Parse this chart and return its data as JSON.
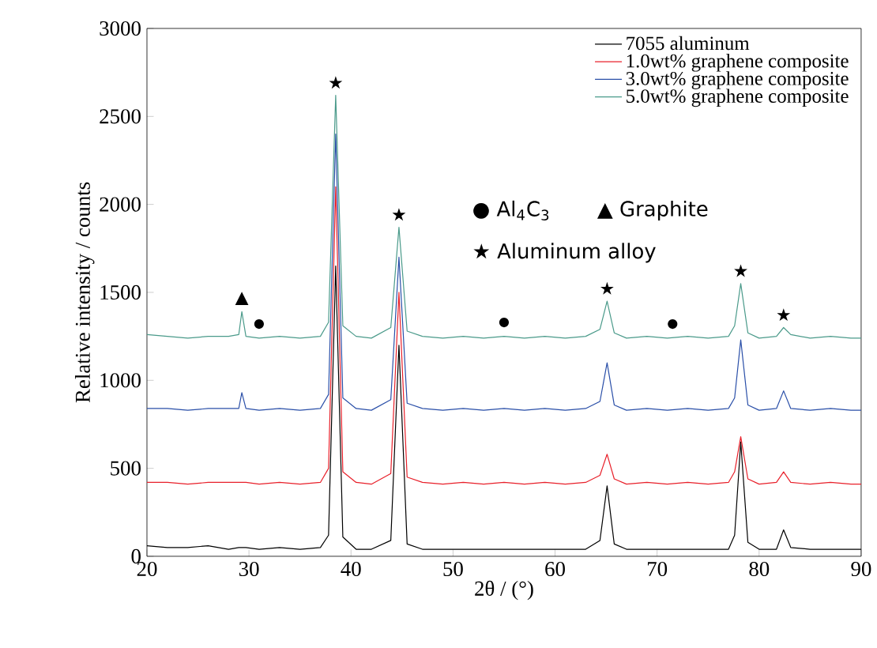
{
  "chart_data": {
    "type": "line",
    "xlabel": "2θ / (°)",
    "ylabel": "Relative intensity / counts",
    "x": [
      20,
      22,
      24,
      26,
      28,
      29,
      29.3,
      29.7,
      31,
      33,
      35,
      37,
      37.8,
      38.5,
      39.2,
      40.5,
      42,
      43.9,
      44.7,
      45.5,
      47,
      49,
      51,
      53,
      55,
      57,
      59,
      61,
      63,
      64.4,
      65.1,
      65.8,
      67,
      69,
      71,
      73,
      75,
      77,
      77.6,
      78.2,
      78.9,
      80,
      81.7,
      82.4,
      83.1,
      85,
      87,
      89,
      90
    ],
    "series": [
      {
        "name": "7055 aluminum",
        "color": "#000000",
        "values": [
          60,
          50,
          50,
          60,
          40,
          50,
          50,
          50,
          40,
          50,
          40,
          50,
          120,
          1650,
          110,
          40,
          40,
          90,
          1200,
          70,
          40,
          40,
          40,
          40,
          40,
          40,
          40,
          40,
          40,
          90,
          400,
          70,
          40,
          40,
          40,
          40,
          40,
          40,
          120,
          650,
          80,
          40,
          40,
          150,
          50,
          40,
          40,
          40,
          40
        ]
      },
      {
        "name": "1.0wt% graphene composite",
        "color": "#e8202a",
        "values": [
          420,
          420,
          410,
          420,
          420,
          420,
          420,
          420,
          410,
          420,
          410,
          420,
          500,
          2100,
          480,
          420,
          410,
          470,
          1500,
          450,
          420,
          410,
          420,
          410,
          420,
          410,
          420,
          410,
          420,
          460,
          580,
          440,
          410,
          420,
          410,
          420,
          410,
          420,
          480,
          680,
          440,
          410,
          420,
          480,
          420,
          410,
          420,
          410,
          410
        ]
      },
      {
        "name": "3.0wt% graphene composite",
        "color": "#2a4fa8",
        "values": [
          840,
          840,
          830,
          840,
          840,
          840,
          930,
          840,
          830,
          840,
          830,
          840,
          920,
          2400,
          900,
          840,
          830,
          890,
          1700,
          870,
          840,
          830,
          840,
          830,
          840,
          830,
          840,
          830,
          840,
          880,
          1100,
          860,
          830,
          840,
          830,
          840,
          830,
          840,
          900,
          1230,
          860,
          830,
          840,
          940,
          840,
          830,
          840,
          830,
          830
        ]
      },
      {
        "name": "5.0wt% graphene composite",
        "color": "#4a9a8a",
        "values": [
          1260,
          1250,
          1240,
          1250,
          1250,
          1260,
          1390,
          1250,
          1240,
          1250,
          1240,
          1250,
          1330,
          2620,
          1310,
          1250,
          1240,
          1300,
          1870,
          1280,
          1250,
          1240,
          1250,
          1240,
          1250,
          1240,
          1250,
          1240,
          1250,
          1290,
          1450,
          1270,
          1240,
          1250,
          1240,
          1250,
          1240,
          1250,
          1310,
          1550,
          1270,
          1240,
          1250,
          1300,
          1260,
          1240,
          1250,
          1240,
          1240
        ]
      }
    ],
    "xlim": [
      20,
      90
    ],
    "xticks": [
      20,
      30,
      40,
      50,
      60,
      70,
      80,
      90
    ],
    "ylim": [
      0,
      3000
    ],
    "yticks": [
      0,
      500,
      1000,
      1500,
      2000,
      2500,
      3000
    ],
    "grid": false,
    "legend": "top right",
    "line_style": "solid",
    "marker": "none",
    "annotations": [
      "● Al$_{4}$C$_{3}$",
      "▲ Graphite",
      "★ Aluminum alloy",
      "●",
      "●",
      "●",
      {
        "text": "★",
        "x": 38.5,
        "y": 2620
      },
      {
        "text": "★",
        "x": 44.7,
        "y": 1870
      },
      {
        "text": "★",
        "x": 65.1,
        "y": 1450
      },
      {
        "text": "★",
        "x": 78.2,
        "y": 1550
      },
      {
        "text": "★",
        "x": 82.4,
        "y": 1300
      },
      {
        "text": "▲",
        "x": 29.3,
        "y": 1390
      }
    ]
  }
}
